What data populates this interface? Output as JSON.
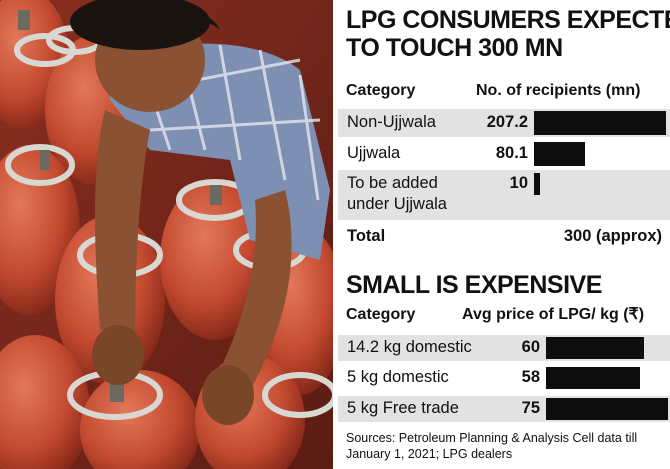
{
  "colors": {
    "bar": "#0d0d0d",
    "shade": "#e2e2e2",
    "photo_cylinder": "#c94a2d"
  },
  "photo": {
    "subject": "worker-handling-lpg-cylinders"
  },
  "chart_data": [
    {
      "type": "bar",
      "title_lines": [
        "LPG CONSUMERS EXPECTED",
        "TO TOUCH 300 MN"
      ],
      "header": {
        "category": "Category",
        "value": "No. of recipients (mn)"
      },
      "categories": [
        "Non-Ujjwala",
        "Ujjwala",
        "To be added under Ujjwala"
      ],
      "values": [
        207.2,
        80.1,
        10
      ],
      "value_labels": [
        "207.2",
        "80.1",
        "10"
      ],
      "total": {
        "label": "Total",
        "value": "300 (approx)"
      }
    },
    {
      "type": "bar",
      "title": "SMALL IS EXPENSIVE",
      "header": {
        "category": "Category",
        "value": "Avg price of LPG/ kg (₹)"
      },
      "categories": [
        "14.2 kg domestic",
        "5 kg domestic",
        "5 kg Free trade"
      ],
      "values": [
        60,
        58,
        75
      ],
      "value_labels": [
        "60",
        "58",
        "75"
      ]
    }
  ],
  "source": "Sources: Petroleum Planning & Analysis Cell data till January 1, 2021; LPG dealers"
}
